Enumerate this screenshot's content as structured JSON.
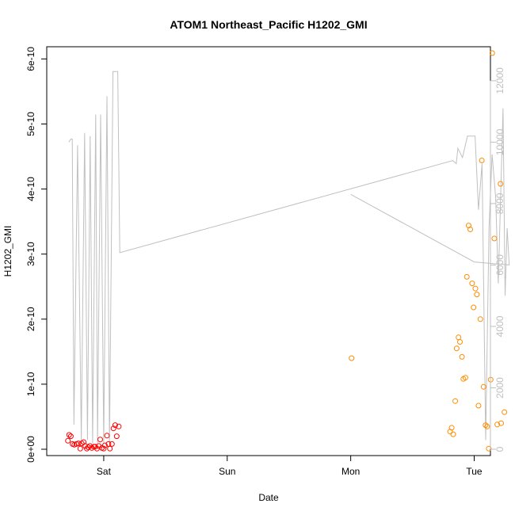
{
  "chart_data": {
    "type": "scatter",
    "title": "ATOM1 Northeast_Pacific H1202_GMI",
    "xlabel": "Date",
    "ylabel": "H1202_GMI",
    "x_unit": "days",
    "xlim": [
      "Fri 15:14",
      "Tue 01:00"
    ],
    "ylim": [
      0,
      6.09e-10
    ],
    "y2lim": [
      0,
      12900
    ],
    "x_ticks": [
      {
        "label": "Sat",
        "value": "Sat 00:00"
      },
      {
        "label": "Sun",
        "value": "Sun 00:00"
      },
      {
        "label": "Mon",
        "value": "Mon 00:00"
      },
      {
        "label": "Tue",
        "value": "Tue 00:00"
      }
    ],
    "y_ticks": [
      {
        "label": "0e+00",
        "value": 0
      },
      {
        "label": "1e-10",
        "value": 1e-10
      },
      {
        "label": "2e-10",
        "value": 2e-10
      },
      {
        "label": "3e-10",
        "value": 3e-10
      },
      {
        "label": "4e-10",
        "value": 4e-10
      },
      {
        "label": "5e-10",
        "value": 5e-10
      },
      {
        "label": "6e-10",
        "value": 6e-10
      }
    ],
    "y2_ticks": [
      {
        "label": "0",
        "value": 0
      },
      {
        "label": "2000",
        "value": 2000
      },
      {
        "label": "4000",
        "value": 4000
      },
      {
        "label": "6000",
        "value": 6000
      },
      {
        "label": "8000",
        "value": 8000
      },
      {
        "label": "10000",
        "value": 10000
      },
      {
        "label": "12000",
        "value": 12000
      }
    ],
    "colors": {
      "series_red": "#ff0000",
      "series_orange": "#ff8c00",
      "altitude_line": "#c0c0c0",
      "axes": "#000000"
    },
    "series": [
      {
        "color": "#ff0000",
        "marker": "open-circle",
        "points": [
          {
            "x": "Fri 17:02",
            "y": 1.3e-11
          },
          {
            "x": "Fri 17:17",
            "y": 2.2e-11
          },
          {
            "x": "Fri 17:36",
            "y": 2e-11
          },
          {
            "x": "Fri 17:57",
            "y": 8e-12
          },
          {
            "x": "Fri 18:17",
            "y": 7e-12
          },
          {
            "x": "Fri 18:41",
            "y": 8e-12
          },
          {
            "x": "Fri 19:05",
            "y": 9e-12
          },
          {
            "x": "Fri 19:26",
            "y": 1e-12
          },
          {
            "x": "Fri 19:43",
            "y": 9e-12
          },
          {
            "x": "Fri 20:06",
            "y": 1.1e-11
          },
          {
            "x": "Fri 20:24",
            "y": 5e-12
          },
          {
            "x": "Fri 20:43",
            "y": 1e-12
          },
          {
            "x": "Fri 21:00",
            "y": 3e-12
          },
          {
            "x": "Fri 21:19",
            "y": 5e-12
          },
          {
            "x": "Fri 21:41",
            "y": 2e-12
          },
          {
            "x": "Fri 22:04",
            "y": 4e-12
          },
          {
            "x": "Fri 22:21",
            "y": 4e-12
          },
          {
            "x": "Fri 22:41",
            "y": 1e-12
          },
          {
            "x": "Fri 23:02",
            "y": 5e-12
          },
          {
            "x": "Fri 23:19",
            "y": 1.5e-11
          },
          {
            "x": "Fri 23:38",
            "y": 2e-12
          },
          {
            "x": "Sat 00:00",
            "y": 1e-12
          },
          {
            "x": "Sat 00:14",
            "y": 6e-12
          },
          {
            "x": "Sat 00:38",
            "y": 2.1e-11
          },
          {
            "x": "Sat 00:55",
            "y": 8e-12
          },
          {
            "x": "Sat 01:12",
            "y": 1e-12
          },
          {
            "x": "Sat 01:36",
            "y": 8e-12
          },
          {
            "x": "Sat 01:53",
            "y": 3.2e-11
          },
          {
            "x": "Sat 02:14",
            "y": 3.7e-11
          },
          {
            "x": "Sat 02:31",
            "y": 2e-11
          },
          {
            "x": "Sat 02:55",
            "y": 3.5e-11
          }
        ]
      },
      {
        "color": "#ff8c00",
        "marker": "open-circle",
        "points": [
          {
            "x": "Mon 00:10",
            "y": 1.4e-10
          },
          {
            "x": "Mon 19:19",
            "y": 2.7e-11
          },
          {
            "x": "Mon 19:38",
            "y": 3.3e-11
          },
          {
            "x": "Mon 19:55",
            "y": 2.3e-11
          },
          {
            "x": "Mon 20:19",
            "y": 7.4e-11
          },
          {
            "x": "Mon 20:36",
            "y": 1.55e-10
          },
          {
            "x": "Mon 20:57",
            "y": 1.72e-10
          },
          {
            "x": "Mon 21:14",
            "y": 1.65e-10
          },
          {
            "x": "Mon 21:38",
            "y": 1.42e-10
          },
          {
            "x": "Mon 21:53",
            "y": 1.08e-10
          },
          {
            "x": "Mon 22:17",
            "y": 1.1e-10
          },
          {
            "x": "Mon 22:34",
            "y": 2.65e-10
          },
          {
            "x": "Mon 22:55",
            "y": 3.44e-10
          },
          {
            "x": "Mon 23:14",
            "y": 3.38e-10
          },
          {
            "x": "Mon 23:36",
            "y": 2.55e-10
          },
          {
            "x": "Mon 23:53",
            "y": 2.18e-10
          },
          {
            "x": "Tue 00:14",
            "y": 2.47e-10
          },
          {
            "x": "Tue 00:31",
            "y": 2.38e-10
          },
          {
            "x": "Tue 00:50",
            "y": 6.7e-11
          },
          {
            "x": "Tue 01:12",
            "y": 2e-10
          },
          {
            "x": "Tue 01:29",
            "y": 4.44e-10
          },
          {
            "x": "Tue 01:50",
            "y": 9.6e-11
          },
          {
            "x": "Tue 02:12",
            "y": 3.7e-11
          },
          {
            "x": "Tue 02:31",
            "y": 3.5e-11
          },
          {
            "x": "Tue 02:50",
            "y": 1e-12
          },
          {
            "x": "Tue 03:12",
            "y": 1.07e-10
          },
          {
            "x": "Tue 03:31",
            "y": 6.09e-10
          },
          {
            "x": "Tue 03:55",
            "y": 3.24e-10
          },
          {
            "x": "Tue 04:29",
            "y": 3.8e-11
          },
          {
            "x": "Tue 05:07",
            "y": 4.08e-10
          },
          {
            "x": "Tue 05:14",
            "y": 4e-11
          },
          {
            "x": "Tue 05:53",
            "y": 5.7e-11
          }
        ]
      }
    ],
    "altitude_line": {
      "axis": "right",
      "color": "#c0c0c0",
      "points": [
        {
          "x": "Fri 17:14",
          "y": 10000
        },
        {
          "x": "Fri 17:36",
          "y": 10100
        },
        {
          "x": "Fri 17:53",
          "y": 10100
        },
        {
          "x": "Fri 18:12",
          "y": 800
        },
        {
          "x": "Fri 18:55",
          "y": 9900
        },
        {
          "x": "Fri 19:38",
          "y": 300
        },
        {
          "x": "Fri 20:17",
          "y": 10300
        },
        {
          "x": "Fri 20:50",
          "y": 300
        },
        {
          "x": "Fri 21:22",
          "y": 10200
        },
        {
          "x": "Fri 21:50",
          "y": 200
        },
        {
          "x": "Fri 22:26",
          "y": 10900
        },
        {
          "x": "Fri 22:48",
          "y": 200
        },
        {
          "x": "Fri 23:24",
          "y": 10900
        },
        {
          "x": "Sat 00:00",
          "y": 200
        },
        {
          "x": "Sat 00:38",
          "y": 11500
        },
        {
          "x": "Sat 01:07",
          "y": 200
        },
        {
          "x": "Sat 01:48",
          "y": 12300
        },
        {
          "x": "Sat 02:43",
          "y": 12300
        },
        {
          "x": "Sat 03:07",
          "y": 6400
        },
        {
          "x": "Mon 19:50",
          "y": 9400
        },
        {
          "x": "Mon 20:31",
          "y": 9300
        },
        {
          "x": "Mon 20:50",
          "y": 9800
        },
        {
          "x": "Mon 21:43",
          "y": 9500
        },
        {
          "x": "Mon 22:41",
          "y": 10200
        },
        {
          "x": "Tue 00:10",
          "y": 10200
        },
        {
          "x": "Tue 00:50",
          "y": 7800
        },
        {
          "x": "Tue 01:31",
          "y": 9300
        },
        {
          "x": "Tue 02:14",
          "y": 300
        },
        {
          "x": "Tue 02:53",
          "y": 7200
        },
        {
          "x": "Tue 03:29",
          "y": 9600
        },
        {
          "x": "Tue 04:10",
          "y": 8200
        },
        {
          "x": "Tue 04:41",
          "y": 5400
        },
        {
          "x": "Tue 05:36",
          "y": 11100
        },
        {
          "x": "Tue 06:00",
          "y": 5000
        },
        {
          "x": "Tue 06:24",
          "y": 7200
        },
        {
          "x": "Tue 06:48",
          "y": 6000
        },
        {
          "x": "Tue 00:00",
          "y": 6100
        },
        {
          "x": "Mon 00:00",
          "y": 8300
        }
      ]
    }
  }
}
